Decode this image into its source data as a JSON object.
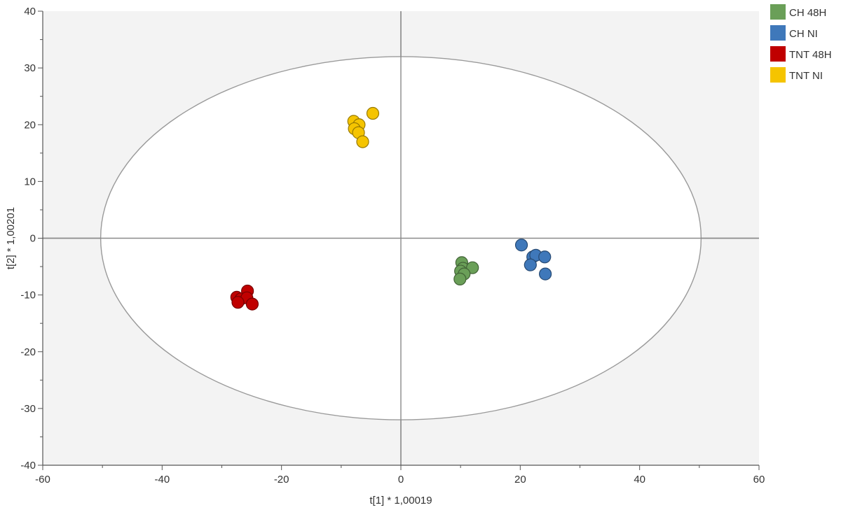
{
  "chart_data": {
    "type": "scatter",
    "xlabel": "t[1] * 1,00019",
    "ylabel": "t[2] * 1,00201",
    "xlim": [
      -60,
      60
    ],
    "ylim": [
      -40,
      40
    ],
    "x_ticks": [
      -60,
      -40,
      -20,
      0,
      20,
      40,
      60
    ],
    "y_ticks": [
      -40,
      -30,
      -20,
      -10,
      0,
      10,
      20,
      30,
      40
    ],
    "grid": false,
    "legend_position": "top-right",
    "ellipse": {
      "rx": 50.3,
      "ry": 32
    },
    "series": [
      {
        "name": "CH 48H",
        "color": "#6a9f58",
        "points": [
          [
            10.2,
            -4.3
          ],
          [
            10.4,
            -5.3
          ],
          [
            12,
            -5.2
          ],
          [
            10,
            -5.8
          ],
          [
            10.6,
            -6.3
          ],
          [
            9.9,
            -7.2
          ]
        ]
      },
      {
        "name": "CH NI",
        "color": "#3f78ba",
        "points": [
          [
            20.2,
            -1.2
          ],
          [
            22.1,
            -3.3
          ],
          [
            22.6,
            -3
          ],
          [
            24.1,
            -3.3
          ],
          [
            21.7,
            -4.7
          ],
          [
            24.2,
            -6.3
          ]
        ]
      },
      {
        "name": "TNT 48H",
        "color": "#c00000",
        "points": [
          [
            -27.5,
            -10.4
          ],
          [
            -25.7,
            -9.3
          ],
          [
            -26.8,
            -10.7
          ],
          [
            -25.8,
            -10.5
          ],
          [
            -27.3,
            -11.3
          ],
          [
            -24.9,
            -11.6
          ]
        ]
      },
      {
        "name": "TNT NI",
        "color": "#f5c400",
        "points": [
          [
            -4.7,
            22
          ],
          [
            -7.9,
            20.6
          ],
          [
            -7,
            20
          ],
          [
            -7.8,
            19.3
          ],
          [
            -7.1,
            18.6
          ],
          [
            -6.4,
            17
          ]
        ]
      }
    ]
  }
}
